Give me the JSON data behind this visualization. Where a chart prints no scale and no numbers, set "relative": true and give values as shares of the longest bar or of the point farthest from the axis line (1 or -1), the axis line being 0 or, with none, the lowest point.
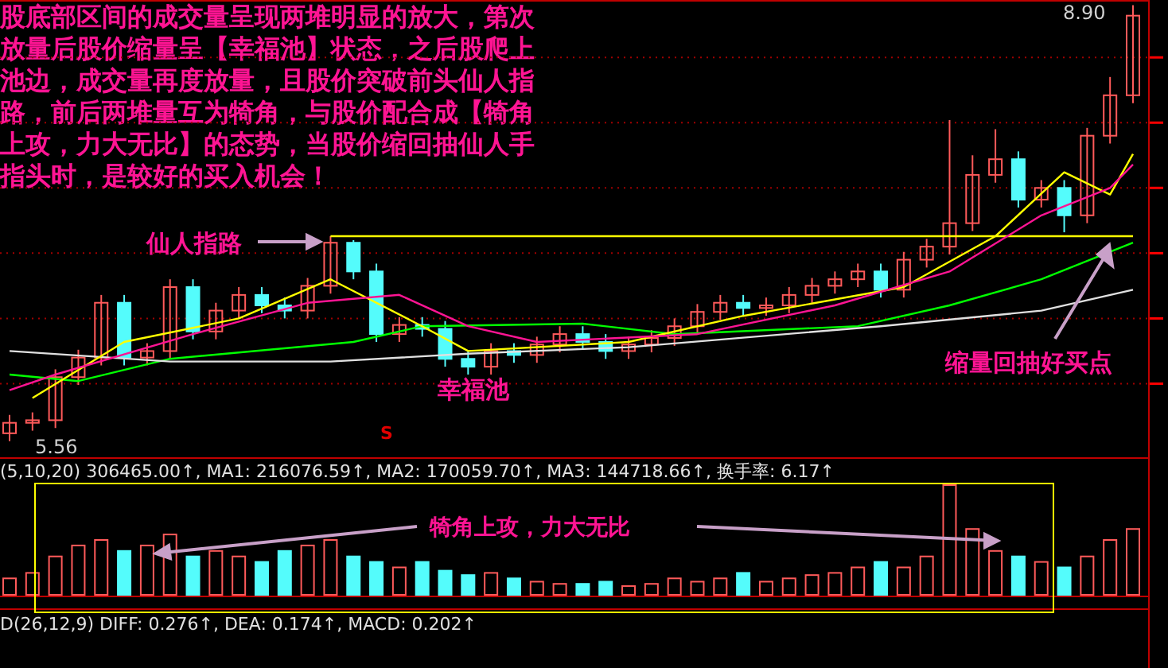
{
  "chart_data": [
    {
      "type": "candlestick",
      "annotations": [
        "股底部区间的成交量呈现两堆明显的放大，第次放量后股价缩量呈【幸福池】状态，之后股爬上池边，成交量再度放量，且股价突破前头仙人指路，前后两堆量互为犄角，与股价配合成【犄角上攻，力大无比】的态势，当股价缩回抽仙人手指头时，是较好的买入机会！",
        "仙人指路",
        "幸福池",
        "缩量回抽好买点",
        "5.56",
        "8.90",
        "S"
      ],
      "categories": [
        null,
        null,
        null,
        null,
        null,
        null,
        null,
        null,
        null,
        null,
        null,
        null,
        null,
        null,
        null,
        null,
        null,
        null,
        null,
        null,
        null,
        null,
        null,
        null,
        null,
        null,
        null,
        null,
        null,
        null,
        null,
        null,
        null,
        null,
        null,
        null,
        null,
        null,
        null,
        null,
        null,
        null,
        null,
        null,
        null,
        null,
        null,
        null,
        null,
        null
      ],
      "ohlc": [
        [
          5.62,
          5.76,
          5.56,
          5.7
        ],
        [
          5.7,
          5.78,
          5.64,
          5.72
        ],
        [
          5.72,
          6.11,
          5.66,
          6.05
        ],
        [
          6.05,
          6.26,
          5.99,
          6.2
        ],
        [
          6.2,
          6.68,
          6.14,
          6.62
        ],
        [
          6.62,
          6.68,
          6.14,
          6.2
        ],
        [
          6.2,
          6.31,
          6.14,
          6.25
        ],
        [
          6.25,
          6.8,
          6.19,
          6.74
        ],
        [
          6.74,
          6.8,
          6.34,
          6.4
        ],
        [
          6.4,
          6.62,
          6.34,
          6.56
        ],
        [
          6.56,
          6.74,
          6.5,
          6.68
        ],
        [
          6.68,
          6.74,
          6.54,
          6.6
        ],
        [
          6.6,
          6.66,
          6.5,
          6.56
        ],
        [
          6.56,
          6.81,
          6.5,
          6.75
        ],
        [
          6.75,
          7.13,
          6.69,
          7.08
        ],
        [
          7.08,
          7.1,
          6.8,
          6.86
        ],
        [
          6.86,
          6.92,
          6.32,
          6.38
        ],
        [
          6.38,
          6.51,
          6.32,
          6.45
        ],
        [
          6.45,
          6.51,
          6.36,
          6.42
        ],
        [
          6.42,
          6.48,
          6.13,
          6.19
        ],
        [
          6.19,
          6.25,
          6.07,
          6.13
        ],
        [
          6.13,
          6.31,
          6.07,
          6.25
        ],
        [
          6.25,
          6.31,
          6.16,
          6.22
        ],
        [
          6.22,
          6.36,
          6.16,
          6.3
        ],
        [
          6.3,
          6.44,
          6.24,
          6.38
        ],
        [
          6.38,
          6.44,
          6.26,
          6.32
        ],
        [
          6.32,
          6.38,
          6.19,
          6.25
        ],
        [
          6.25,
          6.36,
          6.19,
          6.3
        ],
        [
          6.3,
          6.41,
          6.24,
          6.35
        ],
        [
          6.35,
          6.5,
          6.29,
          6.44
        ],
        [
          6.44,
          6.61,
          6.38,
          6.55
        ],
        [
          6.55,
          6.68,
          6.49,
          6.62
        ],
        [
          6.62,
          6.68,
          6.52,
          6.58
        ],
        [
          6.58,
          6.66,
          6.52,
          6.6
        ],
        [
          6.6,
          6.74,
          6.54,
          6.68
        ],
        [
          6.68,
          6.81,
          6.62,
          6.75
        ],
        [
          6.75,
          6.86,
          6.69,
          6.8
        ],
        [
          6.8,
          6.92,
          6.74,
          6.86
        ],
        [
          6.86,
          6.92,
          6.66,
          6.72
        ],
        [
          6.72,
          7.01,
          6.66,
          6.95
        ],
        [
          6.95,
          7.11,
          6.89,
          7.05
        ],
        [
          7.05,
          8.02,
          6.99,
          7.23
        ],
        [
          7.23,
          7.75,
          7.17,
          7.6
        ],
        [
          7.6,
          7.95,
          7.54,
          7.72
        ],
        [
          7.72,
          7.78,
          7.35,
          7.41
        ],
        [
          7.41,
          7.56,
          7.35,
          7.5
        ],
        [
          7.5,
          7.56,
          7.16,
          7.29
        ],
        [
          7.29,
          7.96,
          7.23,
          7.9
        ],
        [
          7.9,
          8.35,
          7.84,
          8.21
        ],
        [
          8.21,
          8.9,
          8.15,
          8.82
        ]
      ],
      "colors": [
        "#ff5a5a",
        "#ff5a5a",
        "#ff5a5a",
        "#ff5a5a",
        "#ff5a5a",
        "#54fcfc",
        "#ff5a5a",
        "#ff5a5a",
        "#54fcfc",
        "#ff5a5a",
        "#ff5a5a",
        "#54fcfc",
        "#54fcfc",
        "#ff5a5a",
        "#ff5a5a",
        "#54fcfc",
        "#54fcfc",
        "#ff5a5a",
        "#54fcfc",
        "#54fcfc",
        "#54fcfc",
        "#ff5a5a",
        "#54fcfc",
        "#ff5a5a",
        "#ff5a5a",
        "#54fcfc",
        "#54fcfc",
        "#ff5a5a",
        "#ff5a5a",
        "#ff5a5a",
        "#ff5a5a",
        "#ff5a5a",
        "#54fcfc",
        "#ff5a5a",
        "#ff5a5a",
        "#ff5a5a",
        "#ff5a5a",
        "#ff5a5a",
        "#54fcfc",
        "#ff5a5a",
        "#ff5a5a",
        "#ff5a5a",
        "#ff5a5a",
        "#ff5a5a",
        "#54fcfc",
        "#ff5a5a",
        "#54fcfc",
        "#ff5a5a",
        "#ff5a5a",
        "#ff5a5a"
      ],
      "series": [
        {
          "type": "line",
          "color": "#ffff00",
          "values": [
            null,
            null,
            null,
            null,
            null,
            null,
            null,
            null,
            null,
            null,
            null,
            null,
            null,
            null,
            7.13,
            null,
            null,
            null,
            null,
            null,
            null,
            null,
            null,
            null,
            null,
            null,
            null,
            null,
            null,
            null,
            null,
            null,
            null,
            null,
            null,
            null,
            null,
            null,
            null,
            null,
            null,
            null,
            null,
            null,
            null,
            null,
            null,
            null,
            null,
            7.13
          ]
        },
        {
          "type": "line",
          "color": "#00ff00",
          "values": [
            6.07,
            null,
            null,
            6.02,
            null,
            null,
            null,
            6.19,
            null,
            null,
            null,
            null,
            null,
            null,
            null,
            6.32,
            null,
            null,
            6.44,
            null,
            null,
            null,
            null,
            null,
            null,
            6.46,
            null,
            null,
            null,
            6.38,
            null,
            null,
            null,
            null,
            null,
            null,
            null,
            6.44,
            null,
            null,
            null,
            6.6,
            null,
            null,
            null,
            6.8,
            null,
            null,
            null,
            7.08
          ]
        },
        {
          "type": "line",
          "color": "#e0e0e0",
          "values": [
            6.25,
            null,
            null,
            null,
            null,
            null,
            null,
            6.17,
            null,
            null,
            null,
            null,
            null,
            null,
            6.17,
            null,
            null,
            null,
            null,
            null,
            6.23,
            null,
            null,
            null,
            null,
            null,
            null,
            6.28,
            null,
            null,
            null,
            null,
            null,
            null,
            null,
            null,
            null,
            null,
            6.44,
            null,
            null,
            null,
            null,
            null,
            null,
            6.56,
            null,
            null,
            null,
            6.72
          ]
        },
        {
          "type": "line",
          "color": "#ffff00",
          "values": [
            null,
            5.89,
            null,
            null,
            null,
            6.32,
            null,
            null,
            null,
            null,
            6.5,
            null,
            null,
            null,
            6.8,
            null,
            null,
            null,
            6.44,
            null,
            6.25,
            null,
            null,
            null,
            null,
            null,
            null,
            6.32,
            null,
            null,
            null,
            null,
            6.52,
            null,
            null,
            null,
            null,
            null,
            null,
            6.74,
            null,
            null,
            null,
            7.13,
            null,
            null,
            7.62,
            null,
            7.45,
            7.76
          ]
        },
        {
          "type": "line",
          "color": "#ff1493",
          "values": [
            5.95,
            null,
            6.07,
            null,
            null,
            null,
            null,
            null,
            6.38,
            null,
            null,
            null,
            null,
            6.62,
            null,
            null,
            null,
            6.68,
            null,
            null,
            6.44,
            null,
            null,
            6.32,
            null,
            null,
            null,
            null,
            null,
            null,
            6.38,
            null,
            null,
            null,
            null,
            null,
            6.6,
            null,
            null,
            null,
            null,
            6.86,
            null,
            null,
            null,
            7.29,
            null,
            null,
            7.5,
            7.68
          ]
        }
      ],
      "relative": false,
      "ylim": [
        5.43,
        8.94
      ],
      "yticks": [
        {
          "value": 6,
          "label": null
        },
        {
          "value": 6.5,
          "label": null
        },
        {
          "value": 7,
          "label": null
        },
        {
          "value": 7.5,
          "label": null
        },
        {
          "value": 8,
          "label": null
        },
        {
          "value": 8.5,
          "label": null
        }
      ],
      "grid": "y"
    },
    {
      "type": "bar",
      "relative": true,
      "subtitle": "(5,10,20)  306465.00↑, MA1: 216076.59↑, MA2: 170059.70↑, MA3: 144718.66↑, 换手率: 6.17↑",
      "annotations": [
        "犄角上攻，力大无比",
        "D(26,12,9)  DIFF: 0.276↑, DEA: 0.174↑, MACD: 0.202↑"
      ],
      "categories": [
        null,
        null,
        null,
        null,
        null,
        null,
        null,
        null,
        null,
        null,
        null,
        null,
        null,
        null,
        null,
        null,
        null,
        null,
        null,
        null,
        null,
        null,
        null,
        null,
        null,
        null,
        null,
        null,
        null,
        null,
        null,
        null,
        null,
        null,
        null,
        null,
        null,
        null,
        null,
        null,
        null,
        null,
        null,
        null,
        null,
        null,
        null,
        null,
        null,
        null
      ],
      "values": [
        0.15,
        0.2,
        0.35,
        0.45,
        0.5,
        0.4,
        0.45,
        0.55,
        0.35,
        0.4,
        0.35,
        0.3,
        0.4,
        0.45,
        0.5,
        0.35,
        0.3,
        0.25,
        0.3,
        0.22,
        0.18,
        0.2,
        0.15,
        0.12,
        0.1,
        0.1,
        0.12,
        0.08,
        0.1,
        0.15,
        0.12,
        0.15,
        0.2,
        0.12,
        0.15,
        0.18,
        0.2,
        0.25,
        0.3,
        0.25,
        0.35,
        1,
        0.6,
        0.4,
        0.35,
        0.3,
        0.25,
        0.35,
        0.5,
        0.6
      ],
      "colors": [
        "#ff5a5a",
        "#ff5a5a",
        "#ff5a5a",
        "#ff5a5a",
        "#ff5a5a",
        "#54fcfc",
        "#ff5a5a",
        "#ff5a5a",
        "#54fcfc",
        "#ff5a5a",
        "#ff5a5a",
        "#54fcfc",
        "#54fcfc",
        "#ff5a5a",
        "#ff5a5a",
        "#54fcfc",
        "#54fcfc",
        "#ff5a5a",
        "#54fcfc",
        "#54fcfc",
        "#54fcfc",
        "#ff5a5a",
        "#54fcfc",
        "#ff5a5a",
        "#ff5a5a",
        "#54fcfc",
        "#54fcfc",
        "#ff5a5a",
        "#ff5a5a",
        "#ff5a5a",
        "#ff5a5a",
        "#ff5a5a",
        "#54fcfc",
        "#ff5a5a",
        "#ff5a5a",
        "#ff5a5a",
        "#ff5a5a",
        "#ff5a5a",
        "#54fcfc",
        "#ff5a5a",
        "#ff5a5a",
        "#ff5a5a",
        "#ff5a5a",
        "#ff5a5a",
        "#54fcfc",
        "#ff5a5a",
        "#54fcfc",
        "#ff5a5a",
        "#ff5a5a",
        "#ff5a5a"
      ]
    }
  ]
}
